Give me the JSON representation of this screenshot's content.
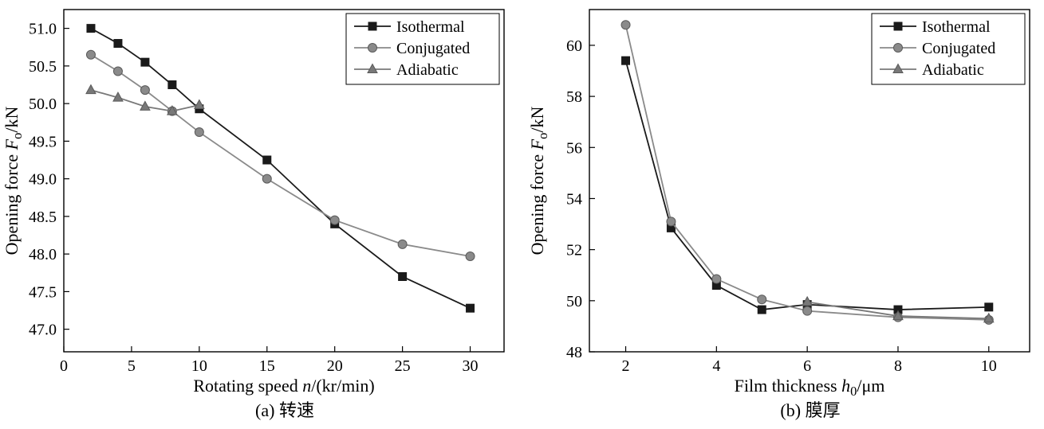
{
  "figure": {
    "background": "#ffffff",
    "frame_color": "#000000"
  },
  "chart_data": [
    {
      "type": "line",
      "name": "rotating-speed",
      "title": "",
      "caption": "(a) 转速",
      "xlabel": "Rotating speed n/(kr/min)",
      "ylabel": "Opening force Fo/kN",
      "xlabel_rich": [
        {
          "t": "Rotating speed "
        },
        {
          "t": "n",
          "i": true
        },
        {
          "t": "/(kr/min)"
        }
      ],
      "ylabel_rich": [
        {
          "t": "Opening force "
        },
        {
          "t": "F",
          "i": true
        },
        {
          "t": "o",
          "sub": true
        },
        {
          "t": "/kN"
        }
      ],
      "xlim": [
        0,
        32.5
      ],
      "ylim": [
        46.7,
        51.25
      ],
      "xticks": [
        0,
        5,
        10,
        15,
        20,
        25,
        30
      ],
      "xtick_labels": [
        "0",
        "5",
        "10",
        "15",
        "20",
        "25",
        "30"
      ],
      "yticks": [
        47.0,
        47.5,
        48.0,
        48.5,
        49.0,
        49.5,
        50.0,
        50.5,
        51.0
      ],
      "ytick_labels": [
        "47.0",
        "47.5",
        "48.0",
        "48.5",
        "49.0",
        "49.5",
        "50.0",
        "50.5",
        "51.0"
      ],
      "grid": false,
      "legend_position": "top-right",
      "series": [
        {
          "name": "Isothermal",
          "marker": "square",
          "color": "#1a1a1a",
          "stroke": "#1a1a1a",
          "x": [
            2,
            4,
            6,
            8,
            10,
            15,
            20,
            25,
            30
          ],
          "y": [
            51.0,
            50.8,
            50.55,
            50.25,
            49.93,
            49.25,
            48.4,
            47.7,
            47.28
          ]
        },
        {
          "name": "Conjugated",
          "marker": "circle",
          "color": "#8a8a8a",
          "stroke": "#5a5a5a",
          "x": [
            2,
            4,
            6,
            8,
            10,
            15,
            20,
            25,
            30
          ],
          "y": [
            50.65,
            50.43,
            50.18,
            49.9,
            49.62,
            49.0,
            48.45,
            48.13,
            47.97
          ]
        },
        {
          "name": "Adiabatic",
          "marker": "triangle",
          "color": "#787878",
          "stroke": "#5a5a5a",
          "x": [
            2,
            4,
            6,
            8,
            10
          ],
          "y": [
            50.18,
            50.08,
            49.96,
            49.9,
            49.98
          ]
        }
      ]
    },
    {
      "type": "line",
      "name": "film-thickness",
      "title": "",
      "caption": "(b) 膜厚",
      "xlabel": "Film thickness h0/μm",
      "ylabel": "Opening force Fo/kN",
      "xlabel_rich": [
        {
          "t": "Film thickness "
        },
        {
          "t": "h",
          "i": true
        },
        {
          "t": "0",
          "sub": true
        },
        {
          "t": "/μm"
        }
      ],
      "ylabel_rich": [
        {
          "t": "Opening force "
        },
        {
          "t": "F",
          "i": true
        },
        {
          "t": "o",
          "sub": true
        },
        {
          "t": "/kN"
        }
      ],
      "xlim": [
        1.2,
        10.9
      ],
      "ylim": [
        48,
        61.4
      ],
      "xticks": [
        2,
        4,
        6,
        8,
        10
      ],
      "xtick_labels": [
        "2",
        "4",
        "6",
        "8",
        "10"
      ],
      "yticks": [
        48,
        50,
        52,
        54,
        56,
        58,
        60
      ],
      "ytick_labels": [
        "48",
        "50",
        "52",
        "54",
        "56",
        "58",
        "60"
      ],
      "grid": false,
      "legend_position": "top-right",
      "series": [
        {
          "name": "Isothermal",
          "marker": "square",
          "color": "#1a1a1a",
          "stroke": "#1a1a1a",
          "x": [
            2,
            3,
            4,
            5,
            6,
            8,
            10
          ],
          "y": [
            59.4,
            52.85,
            50.6,
            49.65,
            49.85,
            49.65,
            49.75
          ]
        },
        {
          "name": "Conjugated",
          "marker": "circle",
          "color": "#8a8a8a",
          "stroke": "#5a5a5a",
          "x": [
            2,
            3,
            4,
            5,
            6,
            8,
            10
          ],
          "y": [
            60.8,
            53.1,
            50.85,
            50.05,
            49.6,
            49.35,
            49.25
          ]
        },
        {
          "name": "Adiabatic",
          "marker": "triangle",
          "color": "#787878",
          "stroke": "#5a5a5a",
          "x": [
            6,
            8,
            10
          ],
          "y": [
            49.95,
            49.4,
            49.3
          ]
        }
      ]
    }
  ]
}
